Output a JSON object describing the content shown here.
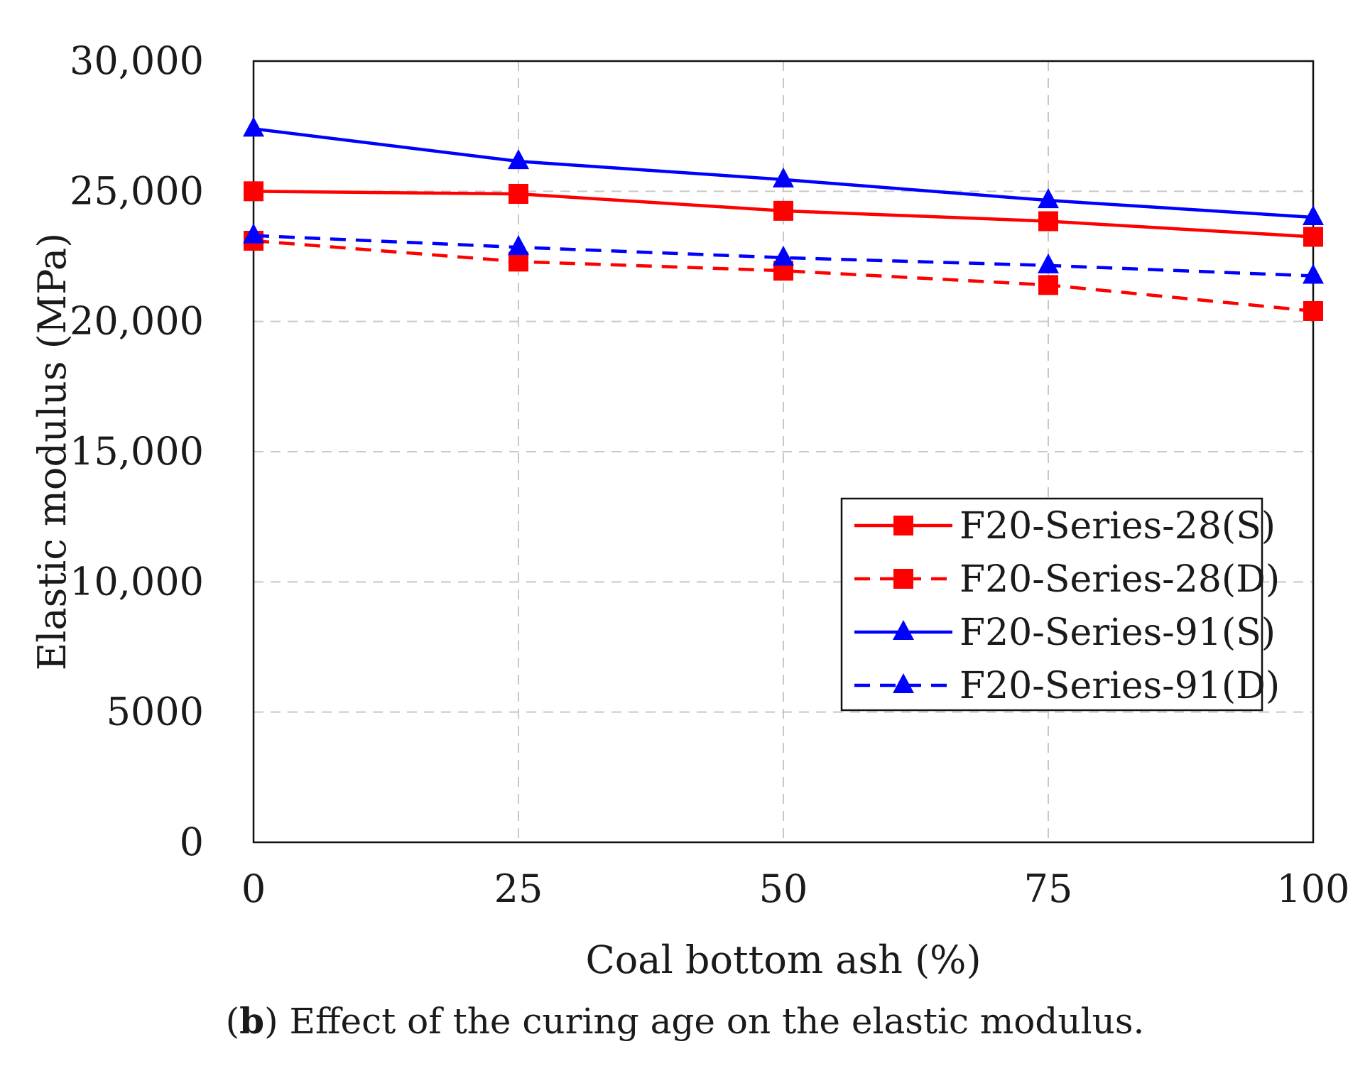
{
  "chart_data": {
    "type": "line",
    "xlabel": "Coal bottom ash (%)",
    "ylabel": "Elastic modulus (MPa)",
    "x": [
      0,
      25,
      50,
      75,
      100
    ],
    "xlim": [
      0,
      100
    ],
    "ylim": [
      0,
      30000
    ],
    "x_ticks": [
      0,
      25,
      50,
      75,
      100
    ],
    "x_tick_labels": [
      "0",
      "25",
      "50",
      "75",
      "100"
    ],
    "y_ticks": [
      0,
      5000,
      10000,
      15000,
      20000,
      25000,
      30000
    ],
    "y_tick_labels": [
      "0",
      "5000",
      "10,000",
      "15,000",
      "20,000",
      "25,000",
      "30,000"
    ],
    "grid": true,
    "legend_position": "center-right",
    "series": [
      {
        "name": "F20-Series-28(S)",
        "color": "#ff0000",
        "line": "solid",
        "marker": "square",
        "values": [
          25000,
          24900,
          24250,
          23850,
          23250
        ]
      },
      {
        "name": "F20-Series-28(D)",
        "color": "#ff0000",
        "line": "dashed",
        "marker": "square",
        "values": [
          23100,
          22300,
          21950,
          21400,
          20400
        ]
      },
      {
        "name": "F20-Series-91(S)",
        "color": "#0000ff",
        "line": "solid",
        "marker": "triangle",
        "values": [
          27400,
          26150,
          25450,
          24650,
          24000
        ]
      },
      {
        "name": "F20-Series-91(D)",
        "color": "#0000ff",
        "line": "dashed",
        "marker": "triangle",
        "values": [
          23300,
          22850,
          22450,
          22150,
          21750
        ]
      }
    ]
  },
  "caption": {
    "open_paren": "(",
    "letter": "b",
    "text": ") Effect of the curing age on the elastic modulus."
  }
}
